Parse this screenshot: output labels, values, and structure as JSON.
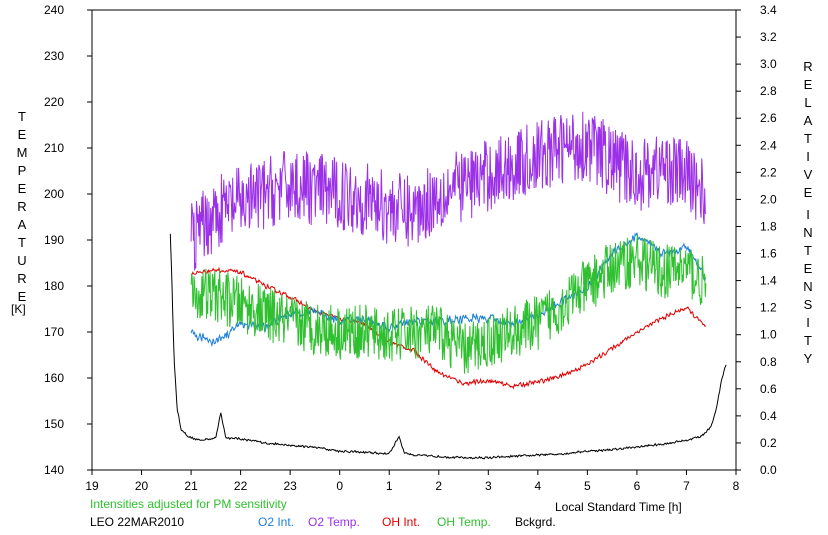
{
  "chart_data": {
    "type": "line",
    "title": "",
    "xlabel": "Local Standard Time [h]",
    "xlim": [
      19,
      32
    ],
    "x_ticks": [
      "19",
      "20",
      "21",
      "22",
      "23",
      "0",
      "1",
      "2",
      "3",
      "4",
      "5",
      "6",
      "7",
      "8"
    ],
    "left_axis": {
      "label_letters": [
        "T",
        "E",
        "M",
        "P",
        "E",
        "R",
        "A",
        "T",
        "U",
        "R",
        "E"
      ],
      "unit": "[K]",
      "ylim": [
        140,
        240
      ],
      "ticks": [
        "140",
        "150",
        "160",
        "170",
        "180",
        "190",
        "200",
        "210",
        "220",
        "230",
        "240"
      ]
    },
    "right_axis": {
      "label_letters_1": [
        "R",
        "E",
        "L",
        "A",
        "T",
        "I",
        "V",
        "E"
      ],
      "label_letters_2": [
        "I",
        "N",
        "T",
        "E",
        "N",
        "S",
        "I",
        "T",
        "Y"
      ],
      "ylim": [
        0,
        3.4
      ],
      "ticks": [
        "0.0",
        "0.2",
        "0.4",
        "0.6",
        "0.8",
        "1.0",
        "1.2",
        "1.4",
        "1.6",
        "1.8",
        "2.0",
        "2.2",
        "2.4",
        "2.6",
        "2.8",
        "3.0",
        "3.2",
        "3.4"
      ]
    },
    "note": "Intensities adjusted for PM sensitivity",
    "station": "LEO 22MAR2010",
    "series": [
      {
        "name": "O2 Int.",
        "axis": "right",
        "color": "#1e7fd8",
        "x": [
          21.0,
          21.5,
          22.0,
          22.5,
          23.0,
          23.5,
          24.0,
          24.5,
          25.0,
          25.5,
          26.0,
          26.5,
          27.0,
          27.5,
          28.0,
          28.5,
          29.0,
          29.5,
          30.0,
          30.5,
          31.0,
          31.4
        ],
        "y": [
          1.0,
          0.95,
          1.08,
          1.06,
          1.16,
          1.18,
          1.1,
          1.12,
          1.05,
          1.1,
          1.1,
          1.12,
          1.12,
          1.08,
          1.14,
          1.25,
          1.35,
          1.6,
          1.73,
          1.6,
          1.65,
          1.42
        ],
        "noise": 0.04
      },
      {
        "name": "O2 Temp.",
        "axis": "left",
        "color": "#9b30e8",
        "x": [
          21.0,
          21.5,
          22.0,
          22.5,
          23.0,
          23.5,
          24.0,
          24.5,
          25.0,
          25.5,
          26.0,
          26.5,
          27.0,
          27.5,
          28.0,
          28.5,
          29.0,
          29.5,
          30.0,
          30.5,
          31.0,
          31.4
        ],
        "y": [
          190,
          196,
          198,
          200,
          202,
          201,
          200,
          199,
          197,
          196,
          200,
          202,
          204,
          206,
          208,
          210,
          211,
          207,
          204,
          206,
          204,
          200
        ],
        "noise": 8
      },
      {
        "name": "OH Int.",
        "axis": "right",
        "color": "#e00000",
        "x": [
          21.0,
          21.5,
          22.0,
          22.5,
          23.0,
          23.5,
          24.0,
          24.5,
          25.0,
          25.5,
          26.0,
          26.5,
          27.0,
          27.5,
          28.0,
          28.5,
          29.0,
          29.5,
          30.0,
          30.5,
          31.0,
          31.4
        ],
        "y": [
          1.45,
          1.48,
          1.46,
          1.36,
          1.28,
          1.17,
          1.12,
          1.08,
          0.95,
          0.88,
          0.72,
          0.64,
          0.66,
          0.62,
          0.65,
          0.7,
          0.78,
          0.9,
          1.02,
          1.12,
          1.2,
          1.05
        ],
        "noise": 0.02
      },
      {
        "name": "OH Temp.",
        "axis": "left",
        "color": "#2ec02e",
        "x": [
          21.0,
          21.5,
          22.0,
          22.5,
          23.0,
          23.5,
          24.0,
          24.5,
          25.0,
          25.5,
          26.0,
          26.5,
          27.0,
          27.5,
          28.0,
          28.5,
          29.0,
          29.5,
          30.0,
          30.5,
          31.0,
          31.4
        ],
        "y": [
          178,
          178,
          176,
          174,
          172,
          171,
          170,
          170,
          169,
          170,
          170,
          166,
          168,
          170,
          172,
          176,
          180,
          184,
          186,
          183,
          184,
          180
        ],
        "noise": 6
      },
      {
        "name": "Bckgrd.",
        "axis": "right",
        "color": "#000000",
        "x": [
          20.58,
          20.62,
          20.66,
          20.72,
          20.8,
          20.95,
          21.2,
          21.5,
          21.6,
          21.7,
          22.0,
          22.5,
          23.0,
          23.5,
          24.0,
          24.5,
          25.0,
          25.2,
          25.3,
          25.5,
          26.0,
          26.5,
          27.0,
          27.5,
          28.0,
          28.5,
          29.0,
          29.5,
          30.0,
          30.5,
          31.0,
          31.3,
          31.5,
          31.6,
          31.65,
          31.7,
          31.75,
          31.8
        ],
        "y": [
          1.75,
          1.3,
          0.8,
          0.45,
          0.3,
          0.24,
          0.22,
          0.24,
          0.42,
          0.24,
          0.23,
          0.2,
          0.18,
          0.17,
          0.14,
          0.13,
          0.12,
          0.25,
          0.13,
          0.11,
          0.1,
          0.09,
          0.09,
          0.1,
          0.11,
          0.12,
          0.14,
          0.15,
          0.17,
          0.19,
          0.22,
          0.25,
          0.32,
          0.45,
          0.55,
          0.65,
          0.72,
          0.78
        ],
        "noise": 0.01
      }
    ]
  }
}
